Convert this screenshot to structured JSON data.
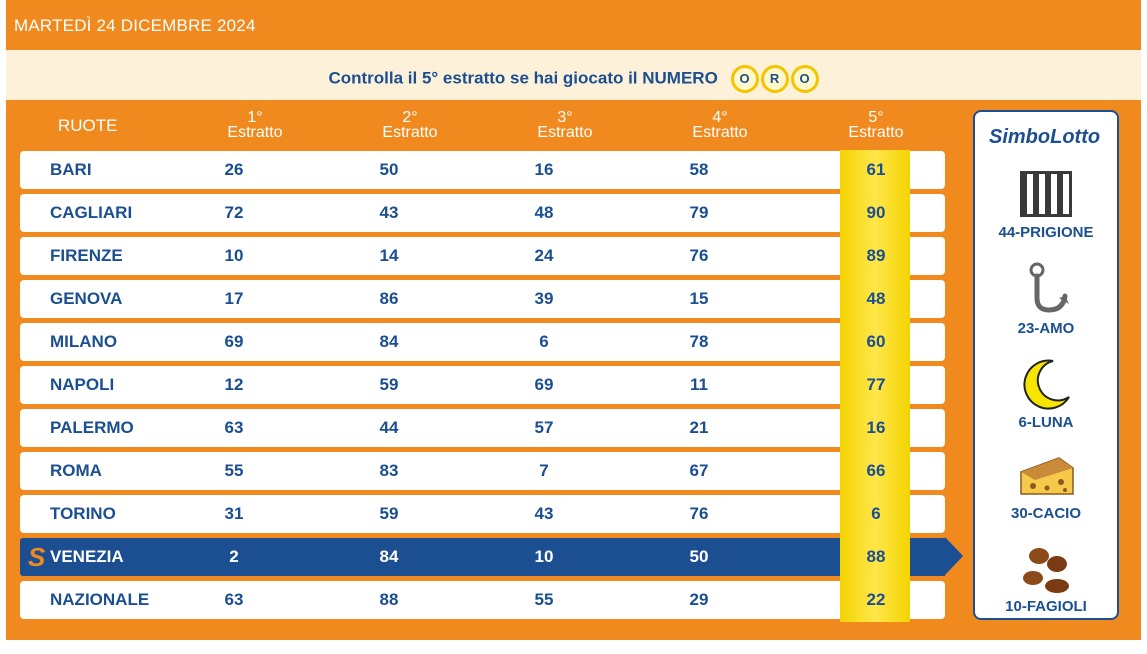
{
  "header": {
    "date": "MARTEDÌ 24 DICEMBRE 2024"
  },
  "oro": {
    "text": "Controlla il 5° estratto se hai giocato il NUMERO",
    "letters": [
      "O",
      "R",
      "O"
    ]
  },
  "columns": {
    "ruote": "RUOTE",
    "estratti": [
      {
        "num": "1°",
        "label": "Estratto"
      },
      {
        "num": "2°",
        "label": "Estratto"
      },
      {
        "num": "3°",
        "label": "Estratto"
      },
      {
        "num": "4°",
        "label": "Estratto"
      },
      {
        "num": "5°",
        "label": "Estratto"
      }
    ]
  },
  "rows": [
    {
      "name": "BARI",
      "nums": [
        "26",
        "50",
        "16",
        "58",
        "61"
      ]
    },
    {
      "name": "CAGLIARI",
      "nums": [
        "72",
        "43",
        "48",
        "79",
        "90"
      ]
    },
    {
      "name": "FIRENZE",
      "nums": [
        "10",
        "14",
        "24",
        "76",
        "89"
      ]
    },
    {
      "name": "GENOVA",
      "nums": [
        "17",
        "86",
        "39",
        "15",
        "48"
      ]
    },
    {
      "name": "MILANO",
      "nums": [
        "69",
        "84",
        "6",
        "78",
        "60"
      ]
    },
    {
      "name": "NAPOLI",
      "nums": [
        "12",
        "59",
        "69",
        "11",
        "77"
      ]
    },
    {
      "name": "PALERMO",
      "nums": [
        "63",
        "44",
        "57",
        "21",
        "16"
      ]
    },
    {
      "name": "ROMA",
      "nums": [
        "55",
        "83",
        "7",
        "67",
        "66"
      ]
    },
    {
      "name": "TORINO",
      "nums": [
        "31",
        "59",
        "43",
        "76",
        "6"
      ]
    },
    {
      "name": "VENEZIA",
      "nums": [
        "2",
        "84",
        "10",
        "50",
        "88"
      ]
    },
    {
      "name": "NAZIONALE",
      "nums": [
        "63",
        "88",
        "55",
        "29",
        "22"
      ]
    }
  ],
  "simbolotto": {
    "title": "SimboLotto",
    "symbols": [
      {
        "label": "44-PRIGIONE",
        "icon": "prison-bars-icon"
      },
      {
        "label": "23-AMO",
        "icon": "fish-hook-icon"
      },
      {
        "label": "6-LUNA",
        "icon": "crescent-moon-icon"
      },
      {
        "label": "30-CACIO",
        "icon": "cheese-icon"
      },
      {
        "label": "10-FAGIOLI",
        "icon": "beans-icon"
      }
    ]
  },
  "colors": {
    "orange": "#f08a1e",
    "blue": "#1c4e92",
    "gold": "#f3d400",
    "cream": "#fdf1d9"
  }
}
